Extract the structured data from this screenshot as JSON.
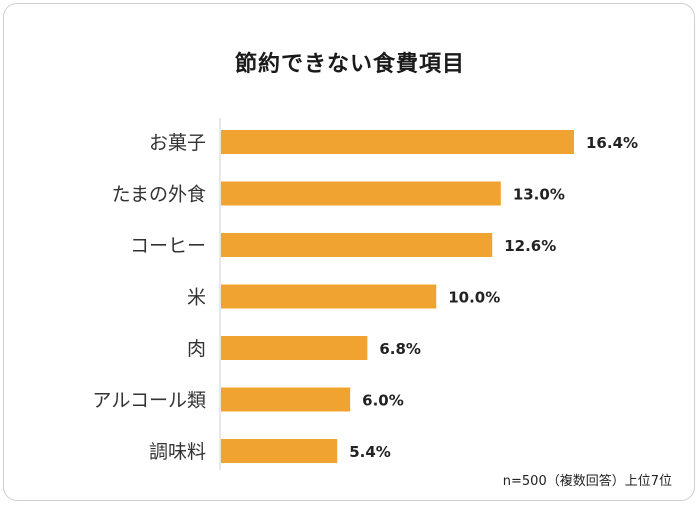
{
  "chart_data": {
    "type": "bar",
    "orientation": "horizontal",
    "title": "節約できない食費項目",
    "categories": [
      "お菓子",
      "たまの外食",
      "コーヒー",
      "米",
      "肉",
      "アルコール類",
      "調味料"
    ],
    "values": [
      16.4,
      13.0,
      12.6,
      10.0,
      6.8,
      6.0,
      5.4
    ],
    "value_labels": [
      "16.4%",
      "13.0%",
      "12.6%",
      "10.0%",
      "6.8%",
      "6.0%",
      "5.4%"
    ],
    "unit": "%",
    "xlim": [
      0,
      20
    ],
    "bar_color": "#f0a330",
    "note": "n=500（複数回答）上位7位"
  }
}
